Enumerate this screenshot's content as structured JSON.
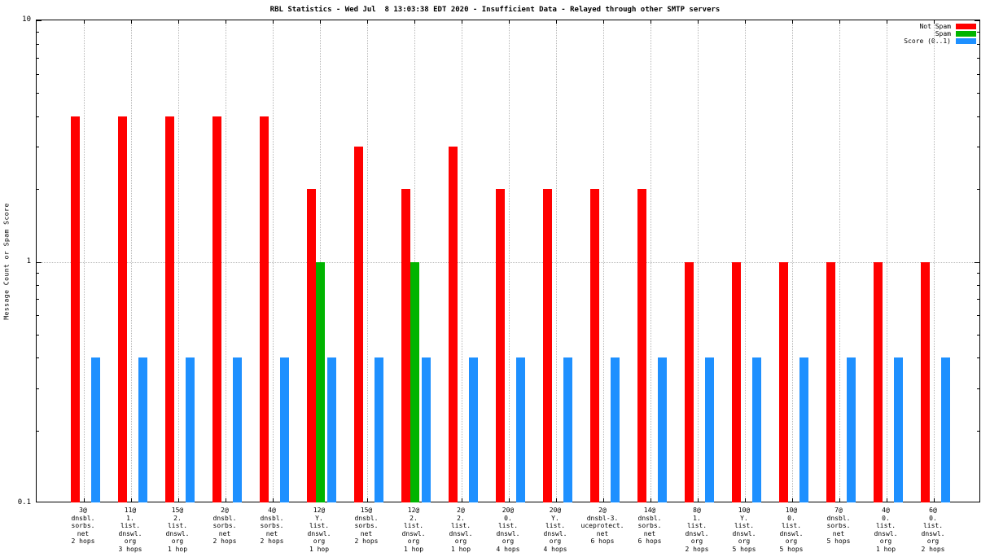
{
  "chart_data": {
    "type": "bar",
    "title": "RBL Statistics - Wed Jul  8 13:03:38 EDT 2020 - Insufficient Data - Relayed through other SMTP servers",
    "ylabel": "Message Count or Spam Score",
    "xlabel": "",
    "yscale": "log",
    "ylim": [
      0.1,
      10
    ],
    "yticks": [
      {
        "v": 10,
        "label": "10"
      },
      {
        "v": 1,
        "label": "1"
      },
      {
        "v": 0.1,
        "label": "0.1"
      }
    ],
    "grid": {
      "h_at": [
        1
      ],
      "vertical_per_category": true
    },
    "legend_position": "top-right",
    "categories": [
      [
        "3@",
        "dnsbl.",
        "sorbs.",
        "net",
        "2 hops"
      ],
      [
        "11@",
        "1.",
        "list.",
        "dnswl.",
        "org",
        "3 hops"
      ],
      [
        "15@",
        "2.",
        "list.",
        "dnswl.",
        "org",
        "1 hop"
      ],
      [
        "2@",
        "dnsbl.",
        "sorbs.",
        "net",
        "2 hops"
      ],
      [
        "4@",
        "dnsbl.",
        "sorbs.",
        "net",
        "2 hops"
      ],
      [
        "12@",
        "Y.",
        "list.",
        "dnswl.",
        "org",
        "1 hop"
      ],
      [
        "15@",
        "dnsbl.",
        "sorbs.",
        "net",
        "2 hops"
      ],
      [
        "12@",
        "2.",
        "list.",
        "dnswl.",
        "org",
        "1 hop"
      ],
      [
        "2@",
        "2.",
        "list.",
        "dnswl.",
        "org",
        "1 hop"
      ],
      [
        "20@",
        "0.",
        "list.",
        "dnswl.",
        "org",
        "4 hops"
      ],
      [
        "20@",
        "Y.",
        "list.",
        "dnswl.",
        "org",
        "4 hops"
      ],
      [
        "2@",
        "dnsbl-3.",
        "uceprotect.",
        "net",
        "6 hops"
      ],
      [
        "14@",
        "dnsbl.",
        "sorbs.",
        "net",
        "6 hops"
      ],
      [
        "8@",
        "1.",
        "list.",
        "dnswl.",
        "org",
        "2 hops"
      ],
      [
        "10@",
        "Y.",
        "list.",
        "dnswl.",
        "org",
        "5 hops"
      ],
      [
        "10@",
        "0.",
        "list.",
        "dnswl.",
        "org",
        "5 hops"
      ],
      [
        "7@",
        "dnsbl.",
        "sorbs.",
        "net",
        "5 hops"
      ],
      [
        "4@",
        "0.",
        "list.",
        "dnswl.",
        "org",
        "1 hop"
      ],
      [
        "6@",
        "0.",
        "list.",
        "dnswl.",
        "org",
        "2 hops"
      ]
    ],
    "series": [
      {
        "name": "Not Spam",
        "color": "#ff0000",
        "values": [
          4,
          4,
          4,
          4,
          4,
          2,
          3,
          2,
          3,
          2,
          2,
          2,
          2,
          1,
          1,
          1,
          1,
          1,
          1
        ]
      },
      {
        "name": "Spam",
        "color": "#00b400",
        "values": [
          0,
          0,
          0,
          0,
          0,
          1,
          0,
          1,
          0,
          0,
          0,
          0,
          0,
          0,
          0,
          0,
          0,
          0,
          0
        ]
      },
      {
        "name": "Score (0..1)",
        "color": "#1e90ff",
        "values": [
          0.4,
          0.4,
          0.4,
          0.4,
          0.4,
          0.4,
          0.4,
          0.4,
          0.4,
          0.4,
          0.4,
          0.4,
          0.4,
          0.4,
          0.4,
          0.4,
          0.4,
          0.4,
          0.4
        ]
      }
    ]
  }
}
